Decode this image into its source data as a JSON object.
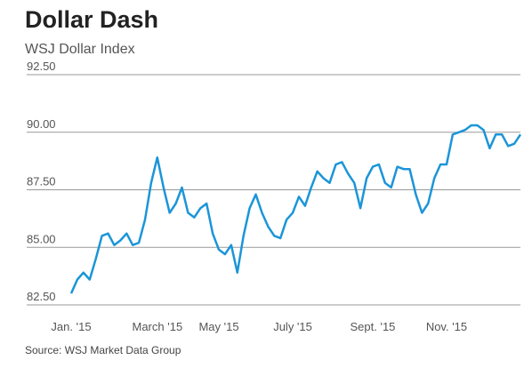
{
  "chart_data": {
    "type": "line",
    "title": "Dollar Dash",
    "subtitle": "WSJ Dollar Index",
    "source": "Source: WSJ Market Data Group",
    "categories": [
      "Jan. '15",
      null,
      null,
      null,
      null,
      null,
      null,
      null,
      null,
      null,
      null,
      null,
      null,
      null,
      "March '15",
      null,
      null,
      null,
      null,
      null,
      null,
      null,
      null,
      null,
      "May '15",
      null,
      null,
      null,
      null,
      null,
      null,
      null,
      null,
      null,
      null,
      null,
      "July '15",
      null,
      null,
      null,
      null,
      null,
      null,
      null,
      null,
      null,
      null,
      null,
      null,
      "Sept. '15",
      null,
      null,
      null,
      null,
      null,
      null,
      null,
      null,
      null,
      null,
      null,
      "Nov. '15",
      null,
      null,
      null,
      null,
      null,
      null,
      null,
      null,
      null,
      null,
      null,
      null
    ],
    "values": [
      83.0,
      83.6,
      83.9,
      83.6,
      84.5,
      85.5,
      85.6,
      85.1,
      85.3,
      85.6,
      85.1,
      85.2,
      86.2,
      87.8,
      88.9,
      87.6,
      86.5,
      86.9,
      87.6,
      86.5,
      86.3,
      86.7,
      86.9,
      85.6,
      84.9,
      84.7,
      85.1,
      83.9,
      85.5,
      86.7,
      87.3,
      86.5,
      85.9,
      85.5,
      85.4,
      86.2,
      86.5,
      87.2,
      86.8,
      87.6,
      88.3,
      88.0,
      87.8,
      88.6,
      88.7,
      88.2,
      87.8,
      86.7,
      88.0,
      88.5,
      88.6,
      87.8,
      87.6,
      88.5,
      88.4,
      88.4,
      87.3,
      86.5,
      86.9,
      88.0,
      88.6,
      88.6,
      89.9,
      90.0,
      90.1,
      90.3,
      90.3,
      90.1,
      89.3,
      89.9,
      89.9,
      89.4,
      89.5,
      89.9
    ],
    "color": "#1b95d8",
    "ylim": [
      82.5,
      92.5
    ],
    "yticks": [
      {
        "value": 82.5,
        "label": "82.50"
      },
      {
        "value": 85,
        "label": "85.00"
      },
      {
        "value": 87.5,
        "label": "87.50"
      },
      {
        "value": 90,
        "label": "90.00"
      },
      {
        "value": 92.5,
        "label": "92.50"
      }
    ],
    "grid": true
  }
}
